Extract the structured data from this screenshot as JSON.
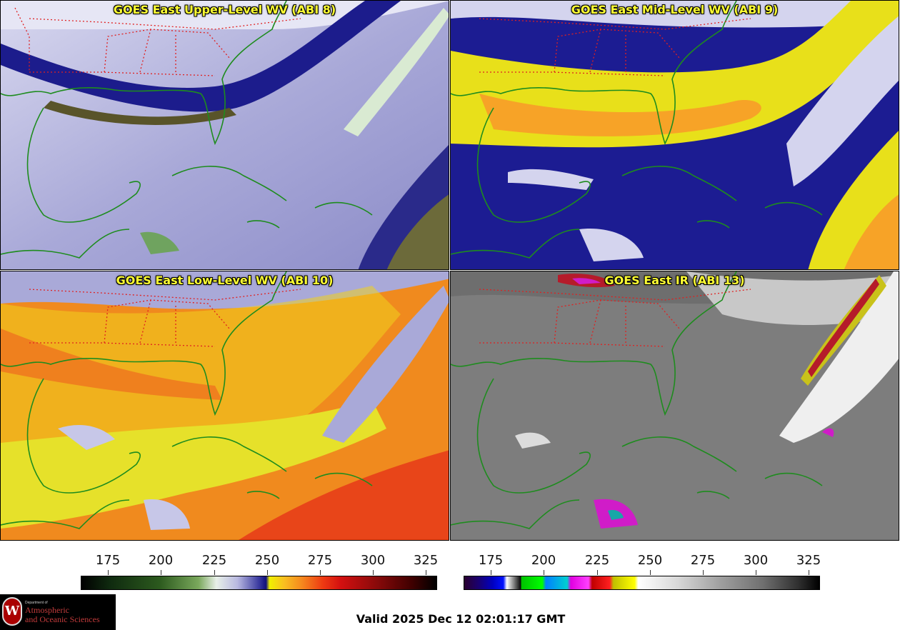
{
  "panels": {
    "upper": {
      "title": "GOES East Upper-Level WV (ABI 8)"
    },
    "mid": {
      "title": "GOES East Mid-Level WV (ABI 9)"
    },
    "low": {
      "title": "GOES East Low-Level WV (ABI 10)"
    },
    "ir": {
      "title": "GOES East IR (ABI 13)"
    }
  },
  "colorbars": {
    "wv": {
      "ticks": [
        "175",
        "200",
        "225",
        "250",
        "275",
        "300",
        "325"
      ]
    },
    "ir": {
      "ticks": [
        "175",
        "200",
        "225",
        "250",
        "275",
        "300",
        "325"
      ]
    }
  },
  "logo": {
    "crest_letter": "W",
    "small_text": "Department of",
    "line1": "Atmospheric",
    "line2": "and Oceanic Sciences"
  },
  "footer": {
    "valid_time": "Valid 2025 Dec 12 02:01:17 GMT"
  },
  "colors": {
    "coastline": "#1e8c1e",
    "state_borders": "#e02020",
    "title_text": "#ffff33"
  }
}
